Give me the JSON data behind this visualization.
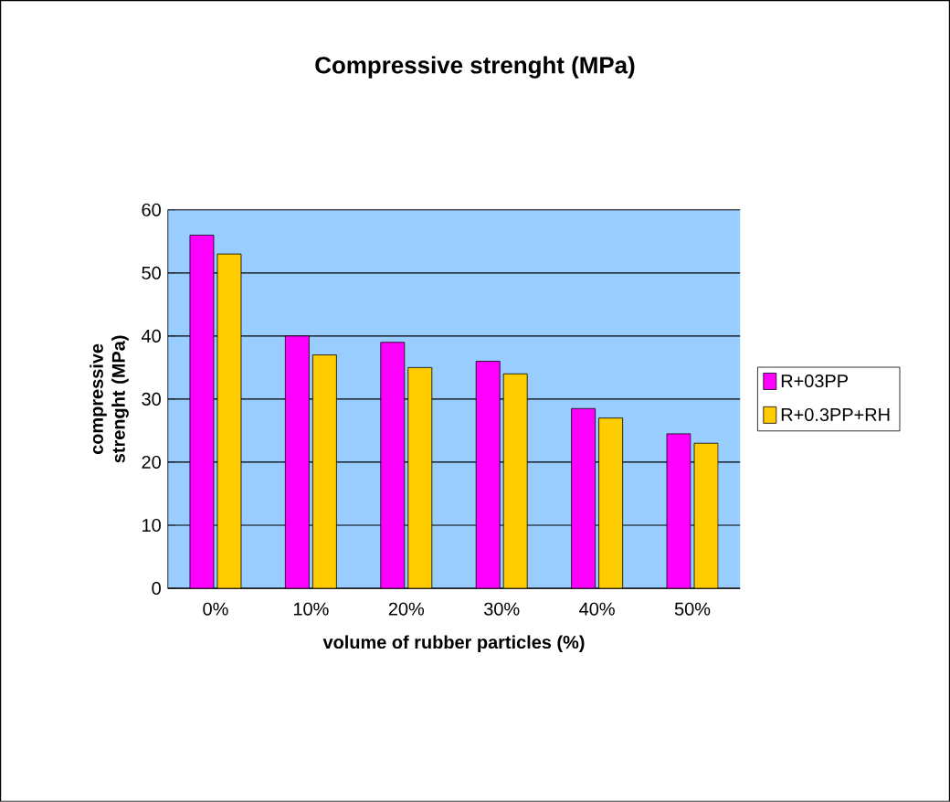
{
  "chart_data": {
    "type": "bar",
    "title": "Compressive strenght (MPa)",
    "xlabel": "volume of rubber particles (%)",
    "ylabel": "compressive strenght (MPa)",
    "categories": [
      "0%",
      "10%",
      "20%",
      "30%",
      "40%",
      "50%"
    ],
    "series": [
      {
        "name": "R+03PP",
        "color": "#ff00ff",
        "values": [
          56,
          40,
          39,
          36,
          28.5,
          24.5
        ]
      },
      {
        "name": "R+0.3PP+RH",
        "color": "#ffcc00",
        "values": [
          53,
          37,
          35,
          34,
          27,
          23
        ]
      }
    ],
    "ylim": [
      0,
      60
    ],
    "yticks": [
      0,
      10,
      20,
      30,
      40,
      50,
      60
    ],
    "grid": "y",
    "legend": "right"
  }
}
